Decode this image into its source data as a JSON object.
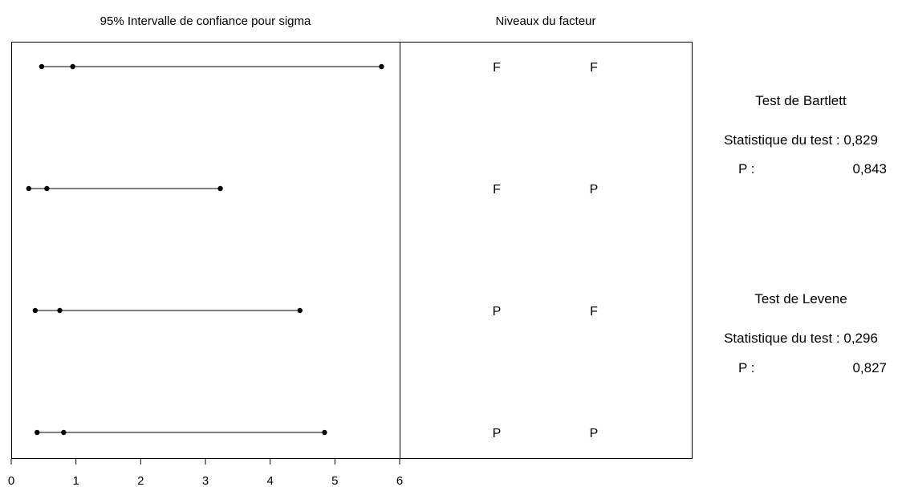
{
  "chart_data": {
    "type": "interval",
    "title": "95% Intervalle de confiance pour sigma",
    "levels_title": "Niveaux du facteur",
    "xlim": [
      0,
      6
    ],
    "x_ticks": [
      "0",
      "1",
      "2",
      "3",
      "4",
      "5",
      "6"
    ],
    "grid": false,
    "intervals": [
      {
        "levels": [
          "F",
          "F"
        ],
        "lower": 0.47,
        "sigma": 0.95,
        "upper": 5.72
      },
      {
        "levels": [
          "F",
          "P"
        ],
        "lower": 0.27,
        "sigma": 0.55,
        "upper": 3.23
      },
      {
        "levels": [
          "P",
          "F"
        ],
        "lower": 0.37,
        "sigma": 0.75,
        "upper": 4.46
      },
      {
        "levels": [
          "P",
          "P"
        ],
        "lower": 0.4,
        "sigma": 0.81,
        "upper": 4.84
      }
    ],
    "tests": [
      {
        "title": "Test de Bartlett",
        "stat_label": "Statistique du test : 0,829",
        "p_label": "P :",
        "p_value": "0,843"
      },
      {
        "title": "Test de Levene",
        "stat_label": "Statistique du test : 0,296",
        "p_label": "P :",
        "p_value": "0,827"
      }
    ]
  }
}
